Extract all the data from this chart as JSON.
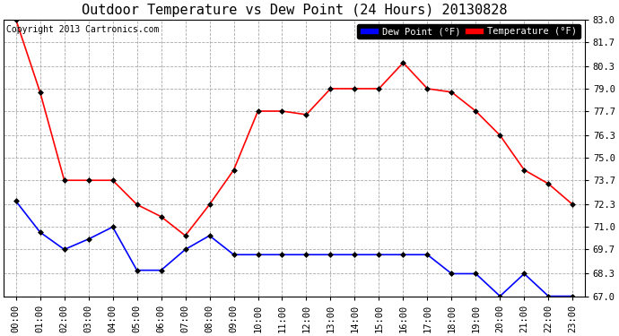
{
  "title": "Outdoor Temperature vs Dew Point (24 Hours) 20130828",
  "copyright": "Copyright 2013 Cartronics.com",
  "background_color": "#ffffff",
  "plot_bg_color": "#ffffff",
  "grid_color": "#aaaaaa",
  "hours": [
    "00:00",
    "01:00",
    "02:00",
    "03:00",
    "04:00",
    "05:00",
    "06:00",
    "07:00",
    "08:00",
    "09:00",
    "10:00",
    "11:00",
    "12:00",
    "13:00",
    "14:00",
    "15:00",
    "16:00",
    "17:00",
    "18:00",
    "19:00",
    "20:00",
    "21:00",
    "22:00",
    "23:00"
  ],
  "temperature": [
    83.0,
    78.8,
    73.7,
    73.7,
    73.7,
    72.3,
    71.6,
    70.5,
    72.3,
    74.3,
    77.7,
    77.7,
    77.5,
    79.0,
    79.0,
    79.0,
    80.5,
    79.0,
    78.8,
    77.7,
    76.3,
    74.3,
    73.5,
    72.3
  ],
  "dew_point": [
    72.5,
    70.7,
    69.7,
    70.3,
    71.0,
    68.5,
    68.5,
    69.7,
    70.5,
    69.4,
    69.4,
    69.4,
    69.4,
    69.4,
    69.4,
    69.4,
    69.4,
    69.4,
    68.3,
    68.3,
    67.0,
    68.3,
    67.0,
    67.0
  ],
  "temp_color": "#ff0000",
  "dew_color": "#0000ff",
  "ylim_min": 67.0,
  "ylim_max": 83.0,
  "yticks": [
    67.0,
    68.3,
    69.7,
    71.0,
    72.3,
    73.7,
    75.0,
    76.3,
    77.7,
    79.0,
    80.3,
    81.7,
    83.0
  ],
  "legend_dew_label": "Dew Point (°F)",
  "legend_temp_label": "Temperature (°F)",
  "marker": "D",
  "marker_size": 3,
  "linewidth": 1.2,
  "title_fontsize": 11,
  "tick_fontsize": 7.5,
  "copyright_fontsize": 7
}
